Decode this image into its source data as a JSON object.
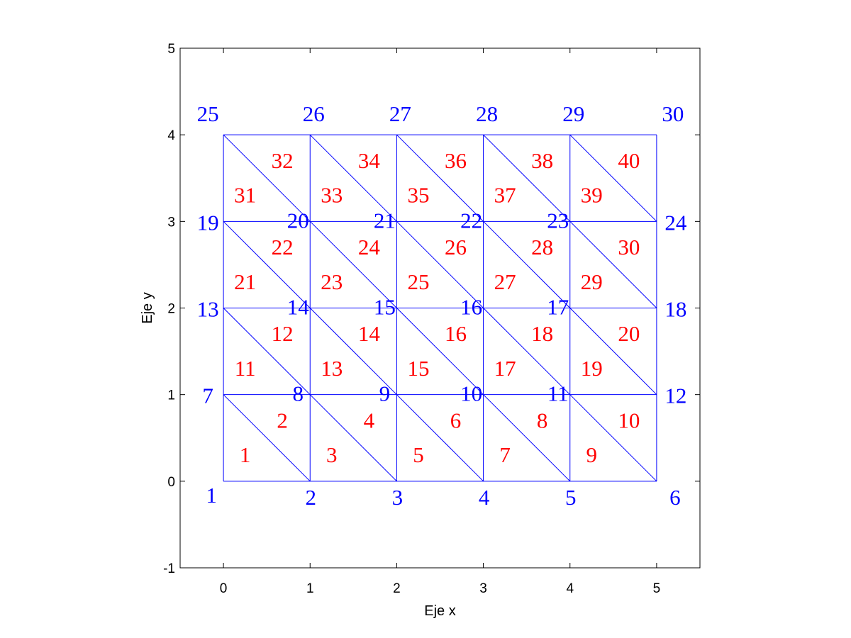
{
  "axes": {
    "xlabel": "Eje x",
    "ylabel": "Eje y",
    "xlim": [
      -0.5,
      5.5
    ],
    "ylim": [
      -1,
      5
    ],
    "xticks": [
      "0",
      "1",
      "2",
      "3",
      "4",
      "5"
    ],
    "yticks": [
      "-1",
      "0",
      "1",
      "2",
      "3",
      "4",
      "5"
    ]
  },
  "mesh": {
    "nx": 5,
    "ny": 4,
    "color": "#0000ff",
    "node_color": "#0000ff",
    "element_color": "#ff0000"
  },
  "nodes": [
    {
      "label": "1",
      "x": 0,
      "y": 0
    },
    {
      "label": "2",
      "x": 1,
      "y": 0
    },
    {
      "label": "3",
      "x": 2,
      "y": 0
    },
    {
      "label": "4",
      "x": 3,
      "y": 0
    },
    {
      "label": "5",
      "x": 4,
      "y": 0
    },
    {
      "label": "6",
      "x": 5,
      "y": 0
    },
    {
      "label": "7",
      "x": 0,
      "y": 1
    },
    {
      "label": "8",
      "x": 1,
      "y": 1
    },
    {
      "label": "9",
      "x": 2,
      "y": 1
    },
    {
      "label": "10",
      "x": 3,
      "y": 1
    },
    {
      "label": "11",
      "x": 4,
      "y": 1
    },
    {
      "label": "12",
      "x": 5,
      "y": 1
    },
    {
      "label": "13",
      "x": 0,
      "y": 2
    },
    {
      "label": "14",
      "x": 1,
      "y": 2
    },
    {
      "label": "15",
      "x": 2,
      "y": 2
    },
    {
      "label": "16",
      "x": 3,
      "y": 2
    },
    {
      "label": "17",
      "x": 4,
      "y": 2
    },
    {
      "label": "18",
      "x": 5,
      "y": 2
    },
    {
      "label": "19",
      "x": 0,
      "y": 3
    },
    {
      "label": "20",
      "x": 1,
      "y": 3
    },
    {
      "label": "21",
      "x": 2,
      "y": 3
    },
    {
      "label": "22",
      "x": 3,
      "y": 3
    },
    {
      "label": "23",
      "x": 4,
      "y": 3
    },
    {
      "label": "24",
      "x": 5,
      "y": 3
    },
    {
      "label": "25",
      "x": 0,
      "y": 4
    },
    {
      "label": "26",
      "x": 1,
      "y": 4
    },
    {
      "label": "27",
      "x": 2,
      "y": 4
    },
    {
      "label": "28",
      "x": 3,
      "y": 4
    },
    {
      "label": "29",
      "x": 4,
      "y": 4
    },
    {
      "label": "30",
      "x": 5,
      "y": 4
    }
  ],
  "elements": [
    "1",
    "2",
    "3",
    "4",
    "5",
    "6",
    "7",
    "8",
    "9",
    "10",
    "11",
    "12",
    "13",
    "14",
    "15",
    "16",
    "17",
    "18",
    "19",
    "20",
    "21",
    "22",
    "23",
    "24",
    "25",
    "26",
    "27",
    "28",
    "29",
    "30",
    "31",
    "32",
    "33",
    "34",
    "35",
    "36",
    "37",
    "38",
    "39",
    "40"
  ]
}
